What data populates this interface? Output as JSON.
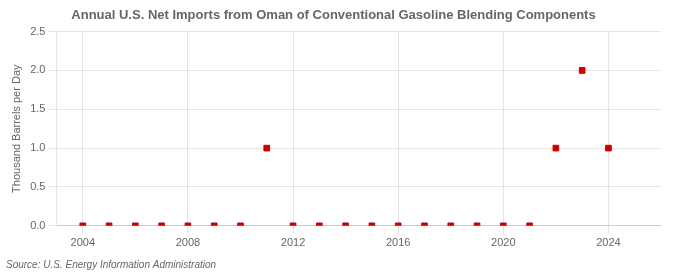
{
  "chart_data": {
    "type": "scatter",
    "title": "Annual U.S. Net Imports from Oman of Conventional Gasoline Blending Components",
    "ylabel": "Thousand Barrels per Day",
    "annotations": [
      "Source: U.S. Energy Information Administration"
    ],
    "x": [
      2004,
      2005,
      2006,
      2007,
      2008,
      2009,
      2010,
      2011,
      2012,
      2013,
      2014,
      2015,
      2016,
      2017,
      2018,
      2019,
      2020,
      2021,
      2022,
      2023,
      2024
    ],
    "values": [
      0.0,
      0.0,
      0.0,
      0.0,
      0.0,
      0.0,
      0.0,
      1.0,
      0.0,
      0.0,
      0.0,
      0.0,
      0.0,
      0.0,
      0.0,
      0.0,
      0.0,
      0.0,
      1.0,
      2.0,
      1.0
    ],
    "color": "#cc0000",
    "marker": "square",
    "xlim": [
      2003.0,
      2026.0
    ],
    "xticks": [
      2004,
      2008,
      2012,
      2016,
      2020,
      2024
    ],
    "ylim": [
      0.0,
      2.5
    ],
    "yticks": [
      {
        "value": 0.0,
        "label": "0.0"
      },
      0.5,
      {
        "value": 1.0,
        "label": "1.0"
      },
      1.5,
      {
        "value": 2.0,
        "label": "2.0"
      },
      2.5
    ],
    "grid": true
  }
}
